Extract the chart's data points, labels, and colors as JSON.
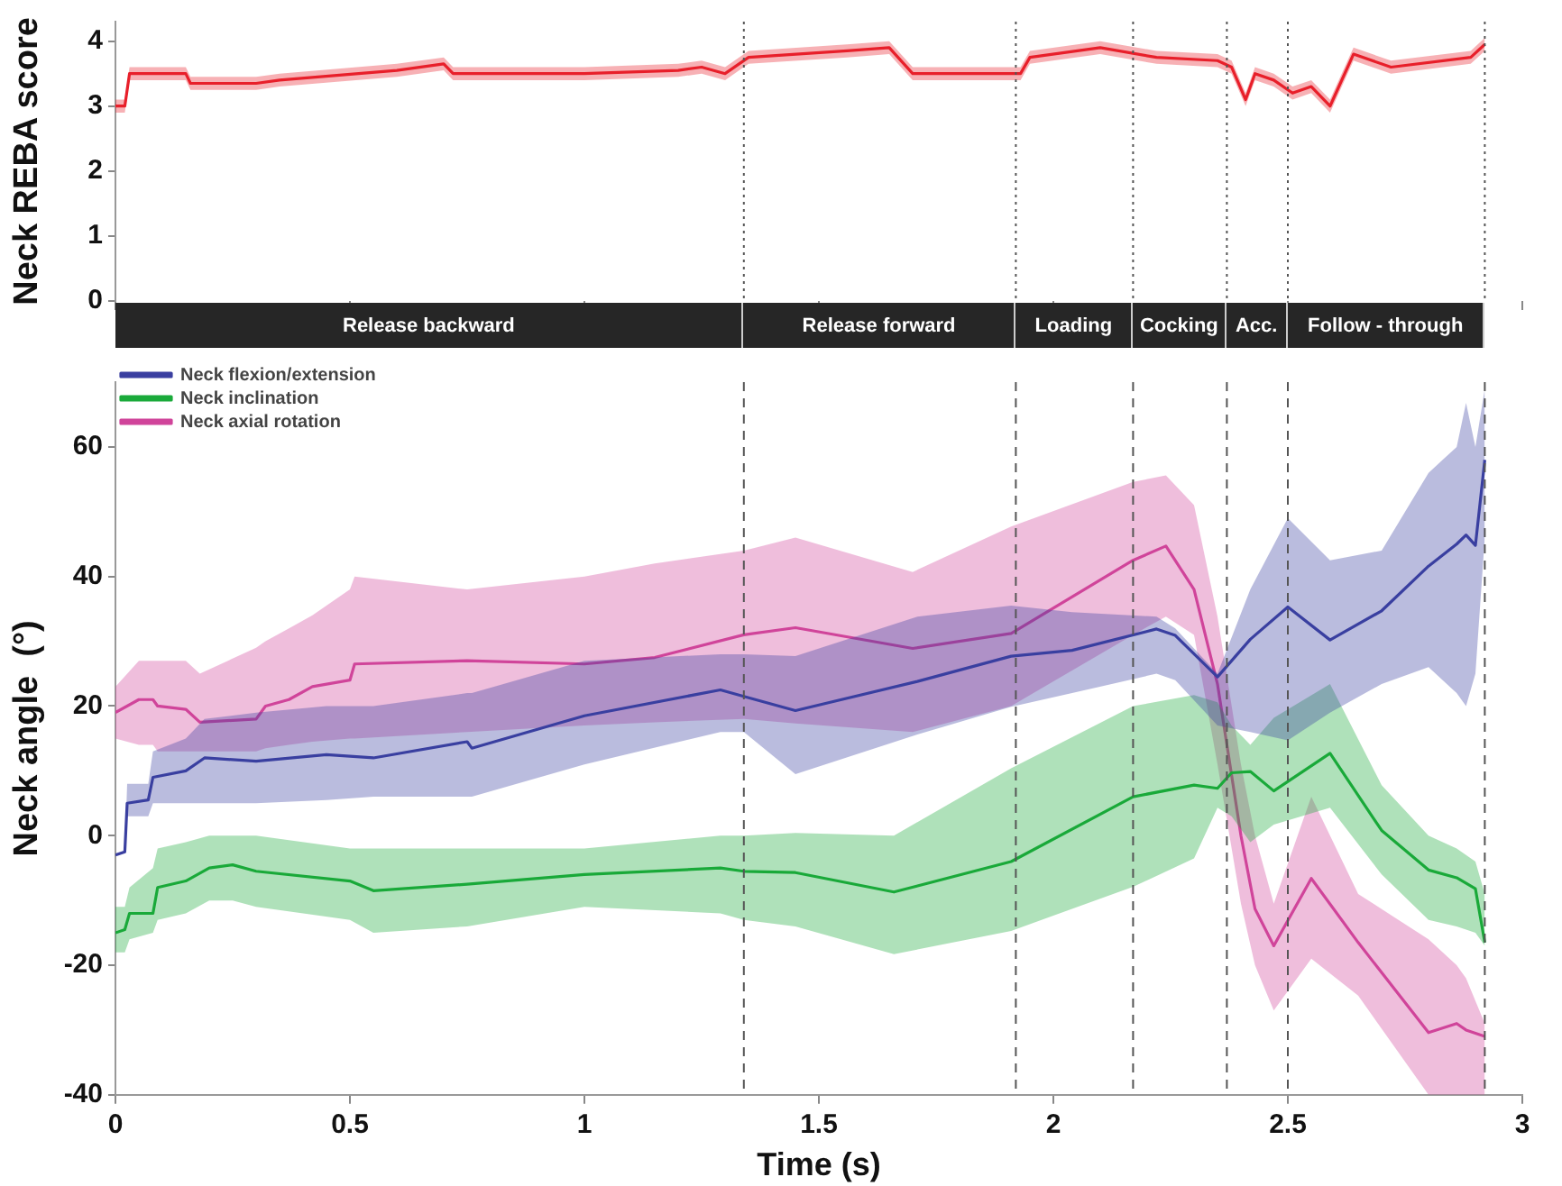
{
  "chart_data": [
    {
      "type": "line",
      "ylabel": "Neck REBA score",
      "xlim": [
        0,
        3
      ],
      "ylim": [
        0,
        4.3
      ],
      "yticks": [
        0,
        1,
        2,
        3,
        4
      ],
      "xticks": [
        0,
        0.5,
        1,
        1.5,
        2,
        2.5,
        3
      ],
      "tick_labels": "y",
      "grid": false,
      "legend": false,
      "marker": "none",
      "line_style": "solid",
      "series": [
        {
          "color": "#e8202a",
          "x": [
            0,
            0.02,
            0.03,
            0.15,
            0.16,
            0.3,
            0.35,
            0.6,
            0.7,
            0.72,
            1.0,
            1.2,
            1.25,
            1.3,
            1.35,
            1.56,
            1.65,
            1.7,
            1.93,
            1.95,
            2.1,
            2.22,
            2.35,
            2.38,
            2.41,
            2.43,
            2.47,
            2.51,
            2.55,
            2.59,
            2.64,
            2.72,
            2.89,
            2.92
          ],
          "values": [
            3.0,
            3.0,
            3.5,
            3.5,
            3.35,
            3.35,
            3.4,
            3.55,
            3.65,
            3.5,
            3.5,
            3.55,
            3.6,
            3.5,
            3.75,
            3.85,
            3.9,
            3.5,
            3.5,
            3.75,
            3.9,
            3.75,
            3.7,
            3.6,
            3.1,
            3.5,
            3.4,
            3.2,
            3.3,
            3.0,
            3.8,
            3.6,
            3.75,
            3.95
          ],
          "lower": [
            2.9,
            2.9,
            3.4,
            3.4,
            3.25,
            3.25,
            3.3,
            3.45,
            3.55,
            3.4,
            3.4,
            3.45,
            3.5,
            3.4,
            3.65,
            3.75,
            3.8,
            3.4,
            3.4,
            3.65,
            3.8,
            3.65,
            3.6,
            3.5,
            3.0,
            3.4,
            3.3,
            3.1,
            3.2,
            2.9,
            3.7,
            3.5,
            3.65,
            3.85
          ],
          "upper": [
            3.1,
            3.1,
            3.6,
            3.6,
            3.45,
            3.45,
            3.5,
            3.65,
            3.75,
            3.6,
            3.6,
            3.65,
            3.7,
            3.6,
            3.85,
            3.95,
            4.0,
            3.6,
            3.6,
            3.85,
            4.0,
            3.85,
            3.8,
            3.7,
            3.2,
            3.6,
            3.5,
            3.3,
            3.4,
            3.1,
            3.9,
            3.7,
            3.85,
            4.05
          ]
        }
      ],
      "annotations": [
        "Release backward",
        "Release forward",
        "Loading",
        "Cocking",
        "Acc.",
        "Follow - through"
      ],
      "ref_lines": [
        {
          "axis": "x",
          "value": 1.34,
          "line_style": "dotted",
          "color": "#555555"
        },
        {
          "axis": "x",
          "value": 1.92,
          "line_style": "dotted",
          "color": "#555555"
        },
        {
          "axis": "x",
          "value": 2.17,
          "line_style": "dotted",
          "color": "#555555"
        },
        {
          "axis": "x",
          "value": 2.37,
          "line_style": "dotted",
          "color": "#555555"
        },
        {
          "axis": "x",
          "value": 2.5,
          "line_style": "dotted",
          "color": "#555555"
        },
        {
          "axis": "x",
          "value": 2.92,
          "line_style": "dotted",
          "color": "#555555"
        }
      ]
    },
    {
      "type": "line",
      "xlabel": "Time (s)",
      "ylabel": "Neck angle  (°)",
      "xlim": [
        0,
        3
      ],
      "ylim": [
        -40,
        70
      ],
      "xticks": [
        0,
        0.5,
        1,
        1.5,
        2,
        2.5,
        3
      ],
      "yticks": [
        -40,
        -20,
        0,
        20,
        40,
        60
      ],
      "grid": false,
      "legend": "top left",
      "marker": "none",
      "line_style": "solid",
      "series": [
        {
          "name": "Neck flexion/extension",
          "color": "#3a3fa0",
          "x": [
            0,
            0.02,
            0.025,
            0.07,
            0.08,
            0.15,
            0.19,
            0.3,
            0.45,
            0.55,
            0.75,
            0.76,
            1.0,
            1.29,
            1.34,
            1.45,
            1.71,
            1.91,
            2.04,
            2.22,
            2.26,
            2.35,
            2.42,
            2.5,
            2.59,
            2.7,
            2.8,
            2.86,
            2.88,
            2.9,
            2.92
          ],
          "values": [
            -3,
            -2.5,
            5,
            5.5,
            9,
            10,
            12,
            11.5,
            12.5,
            12,
            14.5,
            13.5,
            18.5,
            22.5,
            21.5,
            19.3,
            23.8,
            27.7,
            28.6,
            31.9,
            30.9,
            24.5,
            30.3,
            35.3,
            30.2,
            34.7,
            41.6,
            45,
            46.4,
            44.8,
            58
          ],
          "lower": [
            -3,
            -2.5,
            3,
            3,
            5,
            5,
            5,
            5,
            5.5,
            6,
            6,
            6,
            11,
            16,
            16,
            9.5,
            15.6,
            19.9,
            22,
            25,
            24,
            17,
            16,
            14.7,
            19,
            23.4,
            26,
            22,
            20,
            25,
            46
          ],
          "upper": [
            -3,
            -2.5,
            8,
            8,
            13,
            15,
            18,
            19,
            20,
            20,
            22,
            22,
            27,
            28,
            28,
            27.7,
            33.8,
            35.5,
            34.5,
            33.8,
            32,
            25,
            38,
            49,
            42.5,
            44,
            56,
            60,
            66.8,
            60,
            69
          ]
        },
        {
          "name": "Neck inclination",
          "color": "#1aaa3a",
          "x": [
            0,
            0.02,
            0.03,
            0.08,
            0.09,
            0.15,
            0.2,
            0.25,
            0.3,
            0.5,
            0.55,
            0.75,
            1.0,
            1.29,
            1.34,
            1.45,
            1.66,
            1.91,
            2.17,
            2.3,
            2.35,
            2.38,
            2.42,
            2.47,
            2.59,
            2.7,
            2.8,
            2.86,
            2.9,
            2.92
          ],
          "values": [
            -15,
            -14.5,
            -12,
            -12,
            -8,
            -7,
            -5,
            -4.5,
            -5.5,
            -7,
            -8.5,
            -7.5,
            -6,
            -5,
            -5.5,
            -5.7,
            -8.7,
            -4,
            6,
            7.8,
            7.3,
            9.7,
            9.9,
            6.9,
            12.7,
            0.8,
            -5.3,
            -6.5,
            -8.2,
            -16.5
          ],
          "lower": [
            -18,
            -18,
            -16,
            -15,
            -13,
            -12,
            -10,
            -10,
            -11,
            -13,
            -15,
            -14,
            -11,
            -12,
            -13,
            -14,
            -18.3,
            -14.7,
            -7.9,
            -3.5,
            4.3,
            3,
            -1,
            1.7,
            4.3,
            -6,
            -13,
            -14,
            -15,
            -17
          ],
          "upper": [
            -11,
            -11,
            -8,
            -5,
            -2,
            -1,
            0,
            0,
            0,
            -2,
            -2,
            -2,
            -2,
            0,
            0,
            0.4,
            0,
            10.4,
            20,
            21.7,
            20.6,
            17,
            14,
            18.2,
            23.4,
            7.8,
            0,
            -2,
            -4,
            -9
          ]
        },
        {
          "name": "Neck axial rotation",
          "color": "#d0449a",
          "x": [
            0,
            0.05,
            0.08,
            0.09,
            0.15,
            0.18,
            0.3,
            0.32,
            0.37,
            0.42,
            0.5,
            0.51,
            0.75,
            1.0,
            1.15,
            1.34,
            1.45,
            1.7,
            1.91,
            2.17,
            2.24,
            2.3,
            2.35,
            2.4,
            2.43,
            2.47,
            2.55,
            2.65,
            2.8,
            2.86,
            2.88,
            2.92
          ],
          "values": [
            19,
            21,
            21,
            20,
            19.5,
            17.5,
            18,
            20,
            21,
            23,
            24,
            26.5,
            27,
            26.5,
            27.5,
            31,
            32.1,
            28.9,
            31.2,
            42.5,
            44.7,
            38,
            23.4,
            0,
            -11.3,
            -17,
            -6.6,
            -16.5,
            -30.4,
            -29,
            -30,
            -31
          ],
          "lower": [
            15,
            14,
            14,
            13,
            13,
            13,
            13,
            13.5,
            14,
            14.5,
            15,
            15,
            16,
            17,
            17.5,
            18,
            17.3,
            16,
            20,
            31,
            33.8,
            31,
            11,
            -10.5,
            -20,
            -27,
            -19,
            -24.7,
            -40,
            -40,
            -40,
            -40
          ],
          "upper": [
            23,
            27,
            27,
            27,
            27,
            25,
            29,
            30,
            32,
            34,
            38,
            40,
            38,
            40,
            42,
            44,
            46,
            40.7,
            47.7,
            54.6,
            55.6,
            51,
            33.8,
            11,
            0,
            -10.5,
            6,
            -9,
            -16,
            -20,
            -22,
            -29
          ]
        }
      ],
      "ref_lines": [
        {
          "axis": "x",
          "value": 1.34,
          "line_style": "dashed",
          "color": "#555555"
        },
        {
          "axis": "x",
          "value": 1.92,
          "line_style": "dashed",
          "color": "#555555"
        },
        {
          "axis": "x",
          "value": 2.17,
          "line_style": "dashed",
          "color": "#555555"
        },
        {
          "axis": "x",
          "value": 2.37,
          "line_style": "dashed",
          "color": "#555555"
        },
        {
          "axis": "x",
          "value": 2.5,
          "line_style": "dashed",
          "color": "#555555"
        },
        {
          "axis": "x",
          "value": 2.92,
          "line_style": "dashed",
          "color": "#555555"
        }
      ]
    }
  ]
}
